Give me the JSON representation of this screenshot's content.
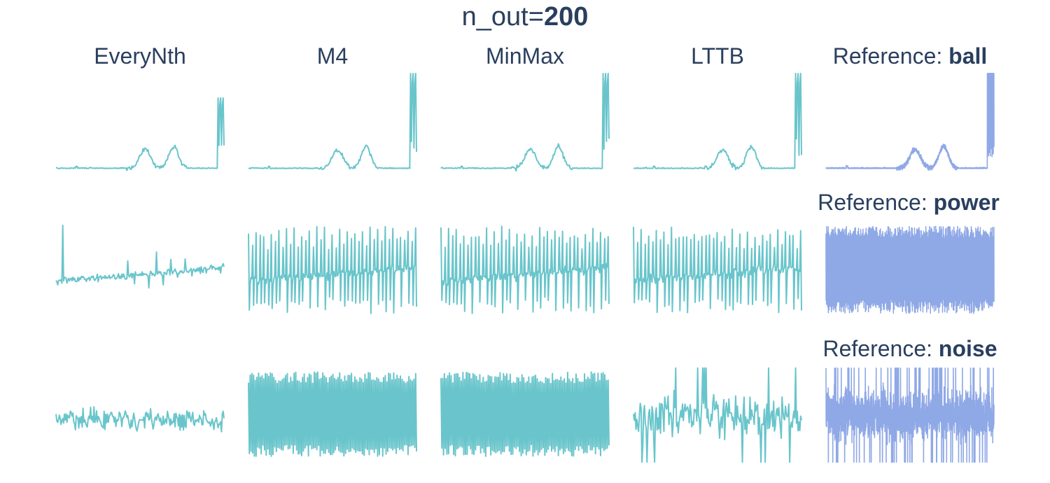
{
  "figure": {
    "title_prefix": "n_out=",
    "title_value": "200",
    "reference_prefix": "Reference: ",
    "colors": {
      "downsampled": "#69c5cb",
      "reference": "#8fa8e6",
      "text": "#2a3f5f",
      "background": "#ffffff"
    }
  },
  "chart_data": {
    "type": "line",
    "grid": false,
    "axes_visible": false,
    "columns": [
      "EveryNth",
      "M4",
      "MinMax",
      "LTTB"
    ],
    "rows": [
      {
        "reference": "ball",
        "shape": "spiky-bumps",
        "y_range": [
          0,
          1
        ],
        "panels": [
          {
            "name": "EveryNth",
            "points": 200,
            "spike_height": 0.75
          },
          {
            "name": "M4",
            "points": 200,
            "spike_height": 1.0
          },
          {
            "name": "MinMax",
            "points": 200,
            "spike_height": 1.0
          },
          {
            "name": "LTTB",
            "points": 200,
            "spike_height": 1.0
          },
          {
            "name": "Reference",
            "points": 2000,
            "spike_height": 1.0
          }
        ]
      },
      {
        "reference": "power",
        "shape": "periodic-spikes",
        "y_range": [
          0,
          1
        ],
        "panels": [
          {
            "name": "EveryNth",
            "points": 200
          },
          {
            "name": "M4",
            "points": 200
          },
          {
            "name": "MinMax",
            "points": 200
          },
          {
            "name": "LTTB",
            "points": 200
          },
          {
            "name": "Reference",
            "points": 2000
          }
        ]
      },
      {
        "reference": "noise",
        "shape": "random-noise",
        "y_range": [
          0,
          1
        ],
        "panels": [
          {
            "name": "EveryNth",
            "points": 200
          },
          {
            "name": "M4",
            "points": 200
          },
          {
            "name": "MinMax",
            "points": 200
          },
          {
            "name": "LTTB",
            "points": 200
          },
          {
            "name": "Reference",
            "points": 2000
          }
        ]
      }
    ]
  }
}
